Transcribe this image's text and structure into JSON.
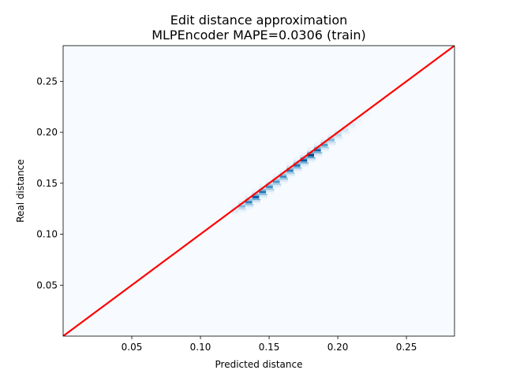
{
  "chart_data": {
    "type": "heatmap",
    "title": "Edit distance approximation",
    "subtitle": "MLPEncoder MAPE=0.0306 (train)",
    "xlabel": "Predicted distance",
    "ylabel": "Real distance",
    "xlim": [
      0.0,
      0.285
    ],
    "ylim": [
      0.0,
      0.285
    ],
    "xticks": [
      0.05,
      0.1,
      0.15,
      0.2,
      0.25
    ],
    "xtick_labels": [
      "0.05",
      "0.10",
      "0.15",
      "0.20",
      "0.25"
    ],
    "yticks": [
      0.05,
      0.1,
      0.15,
      0.2,
      0.25
    ],
    "ytick_labels": [
      "0.05",
      "0.10",
      "0.15",
      "0.20",
      "0.25"
    ],
    "grid": false,
    "colormap": "Blues",
    "background_color": "#f7fbff",
    "reference_line": {
      "x": [
        0.0,
        0.285
      ],
      "y": [
        0.0,
        0.285
      ],
      "color": "#ff0000"
    },
    "density_band": {
      "description": "dense band of predicted vs real distances",
      "x_range": [
        0.12,
        0.225
      ],
      "points": [
        {
          "x": 0.125,
          "y": 0.124,
          "density": 0.15
        },
        {
          "x": 0.13,
          "y": 0.128,
          "density": 0.45
        },
        {
          "x": 0.135,
          "y": 0.132,
          "density": 0.7
        },
        {
          "x": 0.14,
          "y": 0.137,
          "density": 0.85
        },
        {
          "x": 0.145,
          "y": 0.142,
          "density": 0.75
        },
        {
          "x": 0.15,
          "y": 0.147,
          "density": 0.65
        },
        {
          "x": 0.155,
          "y": 0.152,
          "density": 0.6
        },
        {
          "x": 0.16,
          "y": 0.157,
          "density": 0.65
        },
        {
          "x": 0.165,
          "y": 0.163,
          "density": 0.7
        },
        {
          "x": 0.17,
          "y": 0.168,
          "density": 0.75
        },
        {
          "x": 0.175,
          "y": 0.173,
          "density": 0.85
        },
        {
          "x": 0.18,
          "y": 0.178,
          "density": 0.95
        },
        {
          "x": 0.185,
          "y": 0.183,
          "density": 0.8
        },
        {
          "x": 0.19,
          "y": 0.188,
          "density": 0.6
        },
        {
          "x": 0.195,
          "y": 0.193,
          "density": 0.45
        },
        {
          "x": 0.2,
          "y": 0.198,
          "density": 0.3
        },
        {
          "x": 0.205,
          "y": 0.203,
          "density": 0.2
        },
        {
          "x": 0.21,
          "y": 0.208,
          "density": 0.12
        },
        {
          "x": 0.215,
          "y": 0.213,
          "density": 0.07
        },
        {
          "x": 0.22,
          "y": 0.218,
          "density": 0.04
        }
      ]
    }
  }
}
